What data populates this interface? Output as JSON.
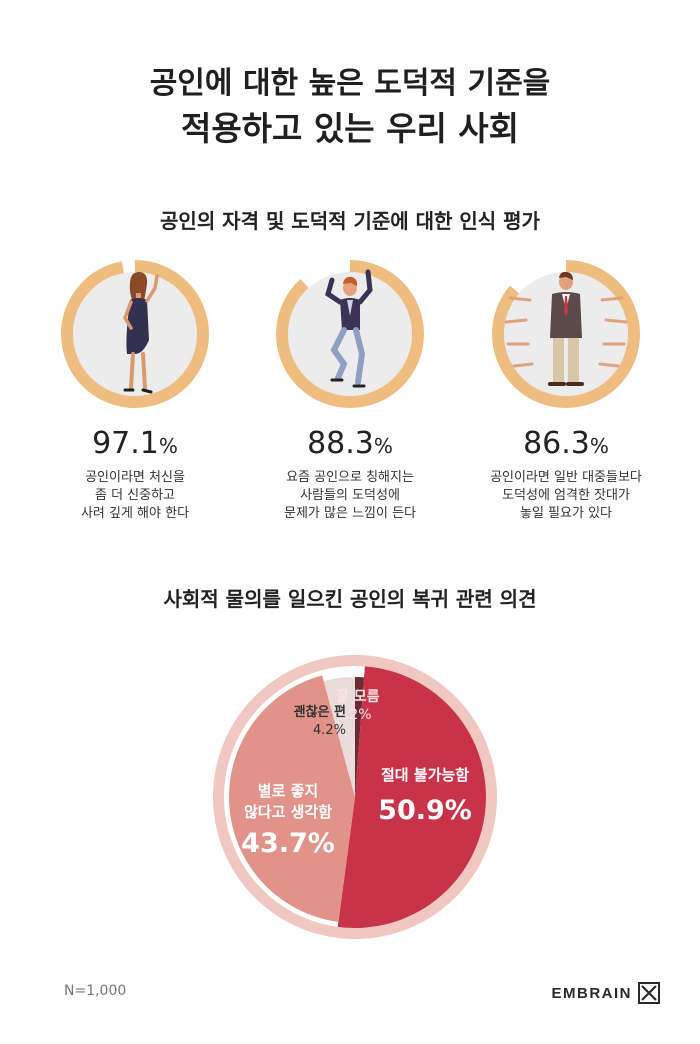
{
  "header": {
    "title_line1": "공인에 대한 높은 도덕적 기준을",
    "title_line2": "적용하고 있는 우리 사회"
  },
  "section1": {
    "title": "공인의 자격 및 도덕적 기준에 대한 인식 평가",
    "stats": [
      {
        "value": "97.1",
        "unit": "%",
        "fraction": 0.971,
        "desc": [
          "공인이라면 처신을",
          "좀 더 신중하고",
          "사려 깊게 해야 한다"
        ]
      },
      {
        "value": "88.3",
        "unit": "%",
        "fraction": 0.883,
        "desc": [
          "요즘 공인으로 칭해지는",
          "사람들의 도덕성에",
          "문제가 많은 느낌이 든다"
        ]
      },
      {
        "value": "86.3",
        "unit": "%",
        "fraction": 0.863,
        "desc": [
          "공인이라면 일반 대중들보다",
          "도덕성에 엄격한 잣대가",
          "놓일 필요가 있다"
        ]
      }
    ],
    "ring_color": "#efbd7f",
    "inner_color": "#ececec"
  },
  "section2": {
    "title": "사회적 물의를 일으킨 공인의 복귀 관련 의견"
  },
  "chart_data": {
    "type": "pie",
    "title": "사회적 물의를 일으킨 공인의 복귀 관련 의견",
    "slices": [
      {
        "label": "잘 모름",
        "value": 1.2,
        "color": "#6a2b32"
      },
      {
        "label": "절대 불가능함",
        "value": 50.9,
        "color": "#c83349"
      },
      {
        "label": "별로 좋지 않다고 생각함",
        "value": 43.7,
        "color": "#e1938a"
      },
      {
        "label": "괜찮은 편",
        "value": 4.2,
        "color": "#e9dcdb"
      }
    ],
    "labels": {
      "dontknow_name": "잘 모름",
      "dontknow_value": "1.2%",
      "never_name": "절대 불가능함",
      "never_value": "50.9%",
      "notgood_line1": "별로 좋지",
      "notgood_line2": "않다고 생각함",
      "notgood_value": "43.7%",
      "okay_name": "괜찮은 편",
      "okay_value": "4.2%"
    },
    "outer_ring_color": "#f1c8c1"
  },
  "footer": {
    "sample": "N=1,000",
    "brand": "EMBRAIN"
  }
}
